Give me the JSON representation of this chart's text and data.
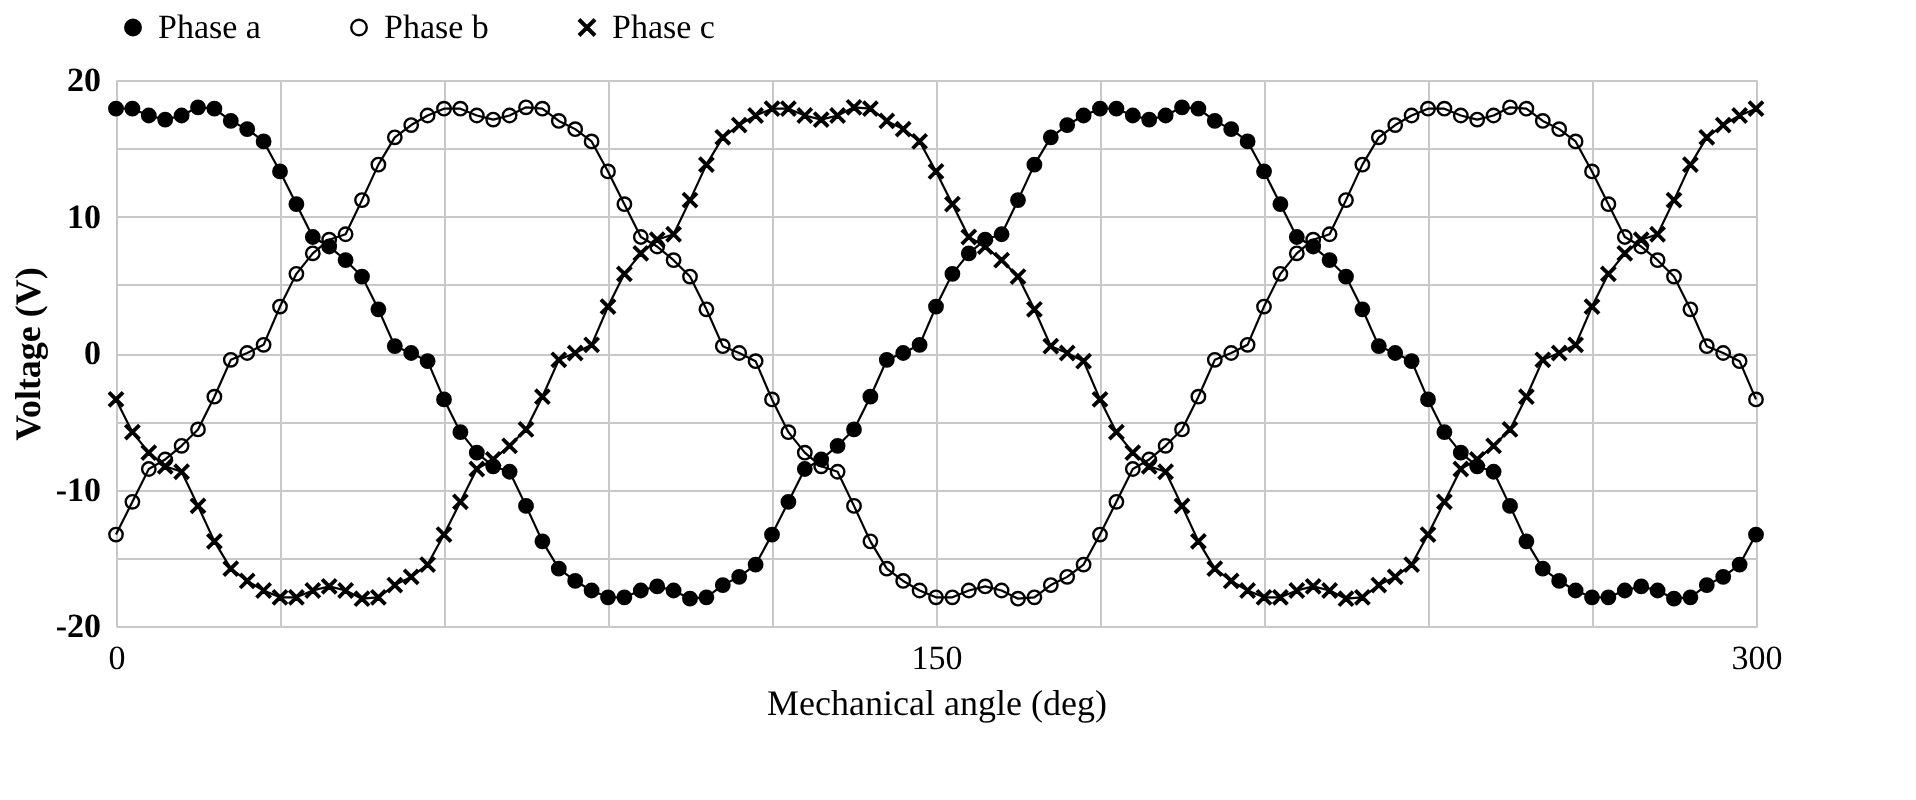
{
  "chart_data": {
    "type": "line",
    "xlabel": "Mechanical angle (deg)",
    "ylabel": "Voltage (V)",
    "x": [
      0,
      3,
      6,
      9,
      12,
      15,
      18,
      21,
      24,
      27,
      30,
      33,
      36,
      39,
      42,
      45,
      48,
      51,
      54,
      57,
      60,
      63,
      66,
      69,
      72,
      75,
      78,
      81,
      84,
      87,
      90,
      93,
      96,
      99,
      102,
      105,
      108,
      111,
      114,
      117,
      120,
      123,
      126,
      129,
      132,
      135,
      138,
      141,
      144,
      147,
      150,
      153,
      156,
      159,
      162,
      165,
      168,
      171,
      174,
      177,
      180,
      183,
      186,
      189,
      192,
      195,
      198,
      201,
      204,
      207,
      210,
      213,
      216,
      219,
      222,
      225,
      228,
      231,
      234,
      237,
      240,
      243,
      246,
      249,
      252,
      255,
      258,
      261,
      264,
      267,
      270,
      273,
      276,
      279,
      282,
      285,
      288,
      291,
      294,
      297,
      300
    ],
    "series": [
      {
        "name": "Phase a",
        "color": "#000000",
        "marker": "circle",
        "values": [
          17.9,
          17.9,
          17.4,
          17.1,
          17.4,
          18.0,
          17.9,
          17.0,
          16.4,
          15.5,
          13.3,
          10.9,
          8.5,
          7.8,
          6.8,
          5.6,
          3.2,
          0.5,
          0.0,
          -0.6,
          -3.4,
          -5.8,
          -7.3,
          -8.3,
          -8.7,
          -11.2,
          -13.8,
          -15.8,
          -16.7,
          -17.4,
          -17.9,
          -17.9,
          -17.4,
          -17.1,
          -17.4,
          -18.0,
          -17.9,
          -17.0,
          -16.4,
          -15.5,
          -13.3,
          -10.9,
          -8.5,
          -7.8,
          -6.8,
          -5.6,
          -3.2,
          -0.5,
          0.0,
          0.6,
          3.4,
          5.8,
          7.3,
          8.3,
          8.7,
          11.2,
          13.8,
          15.8,
          16.7,
          17.4,
          17.9,
          17.9,
          17.4,
          17.1,
          17.4,
          18.0,
          17.9,
          17.0,
          16.4,
          15.5,
          13.3,
          10.9,
          8.5,
          7.8,
          6.8,
          5.6,
          3.2,
          0.5,
          0.0,
          -0.6,
          -3.4,
          -5.8,
          -7.3,
          -8.3,
          -8.7,
          -11.2,
          -13.8,
          -15.8,
          -16.7,
          -17.4,
          -17.9,
          -17.9,
          -17.4,
          -17.1,
          -17.4,
          -18.0,
          -17.9,
          -17.0,
          -16.4,
          -15.5,
          -13.3
        ]
      },
      {
        "name": "Phase b",
        "color": "#000000",
        "marker": "circle",
        "values": [
          -13.3,
          -10.9,
          -8.5,
          -7.8,
          -6.8,
          -5.6,
          -3.2,
          -0.5,
          0.0,
          0.6,
          3.4,
          5.8,
          7.3,
          8.3,
          8.7,
          11.2,
          13.8,
          15.8,
          16.7,
          17.4,
          17.9,
          17.9,
          17.4,
          17.1,
          17.4,
          18.0,
          17.9,
          17.0,
          16.4,
          15.5,
          13.3,
          10.9,
          8.5,
          7.8,
          6.8,
          5.6,
          3.2,
          0.5,
          0.0,
          -0.6,
          -3.4,
          -5.8,
          -7.3,
          -8.3,
          -8.7,
          -11.2,
          -13.8,
          -15.8,
          -16.7,
          -17.4,
          -17.9,
          -17.9,
          -17.4,
          -17.1,
          -17.4,
          -18.0,
          -17.9,
          -17.0,
          -16.4,
          -15.5,
          -13.3,
          -10.9,
          -8.5,
          -7.8,
          -6.8,
          -5.6,
          -3.2,
          -0.5,
          0.0,
          0.6,
          3.4,
          5.8,
          7.3,
          8.3,
          8.7,
          11.2,
          13.8,
          15.8,
          16.7,
          17.4,
          17.9,
          17.9,
          17.4,
          17.1,
          17.4,
          18.0,
          17.9,
          17.0,
          16.4,
          15.5,
          13.3,
          10.9,
          8.5,
          7.8,
          6.8,
          5.6,
          3.2,
          0.5,
          0.0,
          -0.6,
          -3.4
        ]
      },
      {
        "name": "Phase c",
        "color": "#000000",
        "marker": "cross",
        "values": [
          -3.4,
          -5.8,
          -7.3,
          -8.3,
          -8.7,
          -11.2,
          -13.8,
          -15.8,
          -16.7,
          -17.4,
          -17.9,
          -17.9,
          -17.4,
          -17.1,
          -17.4,
          -18.0,
          -17.9,
          -17.0,
          -16.4,
          -15.5,
          -13.3,
          -10.9,
          -8.5,
          -7.8,
          -6.8,
          -5.6,
          -3.2,
          -0.5,
          0.0,
          0.6,
          3.4,
          5.8,
          7.3,
          8.3,
          8.7,
          11.2,
          13.8,
          15.8,
          16.7,
          17.4,
          17.9,
          17.9,
          17.4,
          17.1,
          17.4,
          18.0,
          17.9,
          17.0,
          16.4,
          15.5,
          13.3,
          10.9,
          8.5,
          7.8,
          6.8,
          5.6,
          3.2,
          0.5,
          0.0,
          -0.6,
          -3.4,
          -5.8,
          -7.3,
          -8.3,
          -8.7,
          -11.2,
          -13.8,
          -15.8,
          -16.7,
          -17.4,
          -17.9,
          -17.9,
          -17.4,
          -17.1,
          -17.4,
          -18.0,
          -17.9,
          -17.0,
          -16.4,
          -15.5,
          -13.3,
          -10.9,
          -8.5,
          -7.8,
          -6.8,
          -5.6,
          -3.2,
          -0.5,
          0.0,
          0.6,
          3.4,
          5.8,
          7.3,
          8.3,
          8.7,
          11.2,
          13.8,
          15.8,
          16.7,
          17.4,
          17.9
        ]
      }
    ],
    "xlim": [
      0,
      300
    ],
    "xticks": [
      0,
      {
        "value": 30,
        "label": null
      },
      {
        "value": 60,
        "label": null
      },
      {
        "value": 90,
        "label": null
      },
      {
        "value": 120,
        "label": null
      },
      150,
      {
        "value": 180,
        "label": null
      },
      {
        "value": 210,
        "label": null
      },
      {
        "value": 240,
        "label": null
      },
      {
        "value": 270,
        "label": null
      },
      300
    ],
    "ylim": [
      -20,
      20
    ],
    "yticks": [
      -20,
      {
        "value": -15,
        "label": null
      },
      -10,
      {
        "value": -5,
        "label": null
      },
      0,
      {
        "value": 5,
        "label": null
      },
      10,
      {
        "value": 15,
        "label": null
      },
      20
    ],
    "grid": true,
    "legend": "top",
    "line_style": "solid"
  }
}
